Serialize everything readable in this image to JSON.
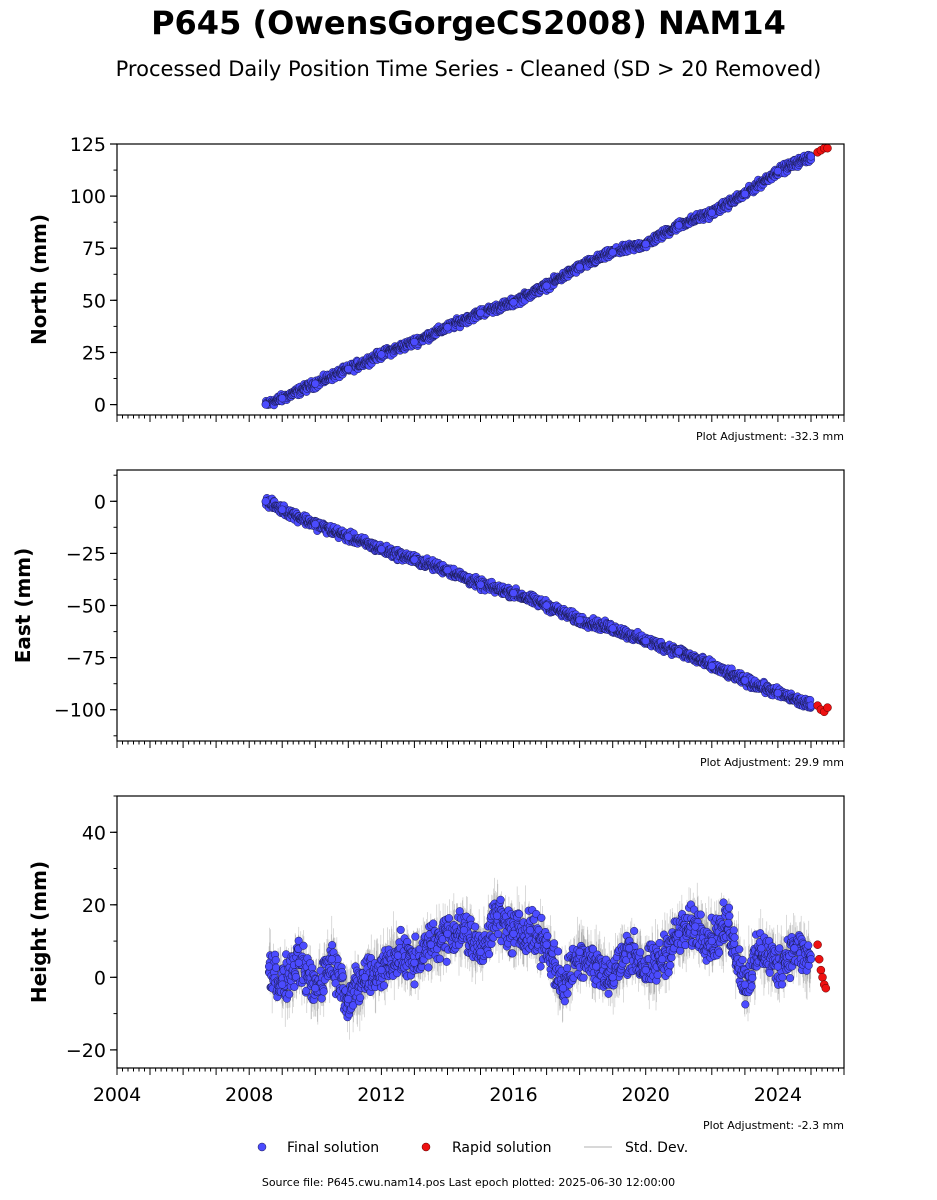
{
  "title": "P645 (OwensGorgeCS2008) NAM14",
  "subtitle": "Processed Daily Position Time Series - Cleaned (SD > 20 Removed)",
  "footer": "Source file: P645.cwu.nam14.pos  Last epoch plotted: 2025-06-30 12:00:00",
  "legend": {
    "final": "Final solution",
    "rapid": "Rapid solution",
    "std": "Std. Dev."
  },
  "colors": {
    "final": "#4b4bff",
    "final_edge": "#1a1a4d",
    "rapid": "#ee1111",
    "std": "#aaaaaa"
  },
  "chart_data": [
    {
      "type": "scatter",
      "ylabel": "North (mm)",
      "adjustment": "Plot Adjustment: -32.3 mm",
      "xlim": [
        2004,
        2026
      ],
      "ylim": [
        -5,
        125
      ],
      "yticks": [
        0,
        25,
        50,
        75,
        100,
        125
      ],
      "ytick_labels": [
        "0",
        "25",
        "50",
        "75",
        "100",
        "125"
      ],
      "series": [
        {
          "name": "Final solution",
          "x": [
            2008.5,
            2009.0,
            2010.0,
            2011.0,
            2012.0,
            2013.0,
            2014.0,
            2015.0,
            2016.0,
            2017.0,
            2018.0,
            2019.0,
            2020.0,
            2021.0,
            2022.0,
            2023.0,
            2024.0,
            2025.0
          ],
          "y": [
            0,
            3,
            10,
            17,
            24,
            30,
            37,
            44,
            49,
            57,
            66,
            73,
            77,
            86,
            92,
            101,
            112,
            119
          ]
        },
        {
          "name": "Rapid solution",
          "x": [
            2025.2,
            2025.3,
            2025.4,
            2025.5
          ],
          "y": [
            121,
            122,
            123,
            123
          ]
        }
      ]
    },
    {
      "type": "scatter",
      "ylabel": "East (mm)",
      "adjustment": "Plot Adjustment: 29.9 mm",
      "xlim": [
        2004,
        2026
      ],
      "ylim": [
        -115,
        15
      ],
      "yticks": [
        0,
        -25,
        -50,
        -75,
        -100
      ],
      "ytick_labels": [
        "0",
        "−25",
        "−50",
        "−75",
        "−100"
      ],
      "series": [
        {
          "name": "Final solution",
          "x": [
            2008.5,
            2009.0,
            2010.0,
            2011.0,
            2012.0,
            2013.0,
            2014.0,
            2015.0,
            2016.0,
            2017.0,
            2018.0,
            2019.0,
            2020.0,
            2021.0,
            2022.0,
            2023.0,
            2024.0,
            2025.0
          ],
          "y": [
            0,
            -4,
            -11,
            -17,
            -23,
            -28,
            -33,
            -40,
            -44,
            -50,
            -57,
            -61,
            -67,
            -72,
            -79,
            -86,
            -92,
            -98
          ]
        },
        {
          "name": "Rapid solution",
          "x": [
            2025.2,
            2025.3,
            2025.4,
            2025.5
          ],
          "y": [
            -98,
            -100,
            -101,
            -99
          ]
        }
      ]
    },
    {
      "type": "scatter",
      "ylabel": "Height (mm)",
      "adjustment": "Plot Adjustment: -2.3 mm",
      "xlim": [
        2004,
        2026
      ],
      "ylim": [
        -25,
        50
      ],
      "yticks": [
        -20,
        0,
        20,
        40
      ],
      "ytick_labels": [
        "−20",
        "0",
        "20",
        "40"
      ],
      "xticks": [
        2004,
        2008,
        2012,
        2016,
        2020,
        2024
      ],
      "xtick_labels": [
        "2004",
        "2008",
        "2012",
        "2016",
        "2020",
        "2024"
      ],
      "series": [
        {
          "name": "Final solution",
          "x": [
            2008.6,
            2009.0,
            2009.5,
            2010.0,
            2010.5,
            2011.0,
            2011.5,
            2012.0,
            2012.5,
            2013.0,
            2013.5,
            2014.0,
            2014.5,
            2015.0,
            2015.5,
            2016.0,
            2016.5,
            2017.0,
            2017.5,
            2018.0,
            2018.5,
            2019.0,
            2019.5,
            2020.0,
            2020.5,
            2021.0,
            2021.5,
            2022.0,
            2022.5,
            2023.0,
            2023.5,
            2024.0,
            2024.5,
            2025.0
          ],
          "y": [
            3,
            -2,
            4,
            -3,
            5,
            -6,
            0,
            2,
            6,
            4,
            9,
            12,
            13,
            7,
            17,
            12,
            13,
            9,
            -3,
            7,
            3,
            0,
            8,
            2,
            5,
            12,
            14,
            10,
            15,
            -2,
            8,
            3,
            8,
            5
          ]
        },
        {
          "name": "Rapid solution",
          "x": [
            2025.2,
            2025.25,
            2025.3,
            2025.35,
            2025.4,
            2025.45
          ],
          "y": [
            9,
            5,
            2,
            0,
            -2,
            -3
          ]
        }
      ]
    }
  ]
}
